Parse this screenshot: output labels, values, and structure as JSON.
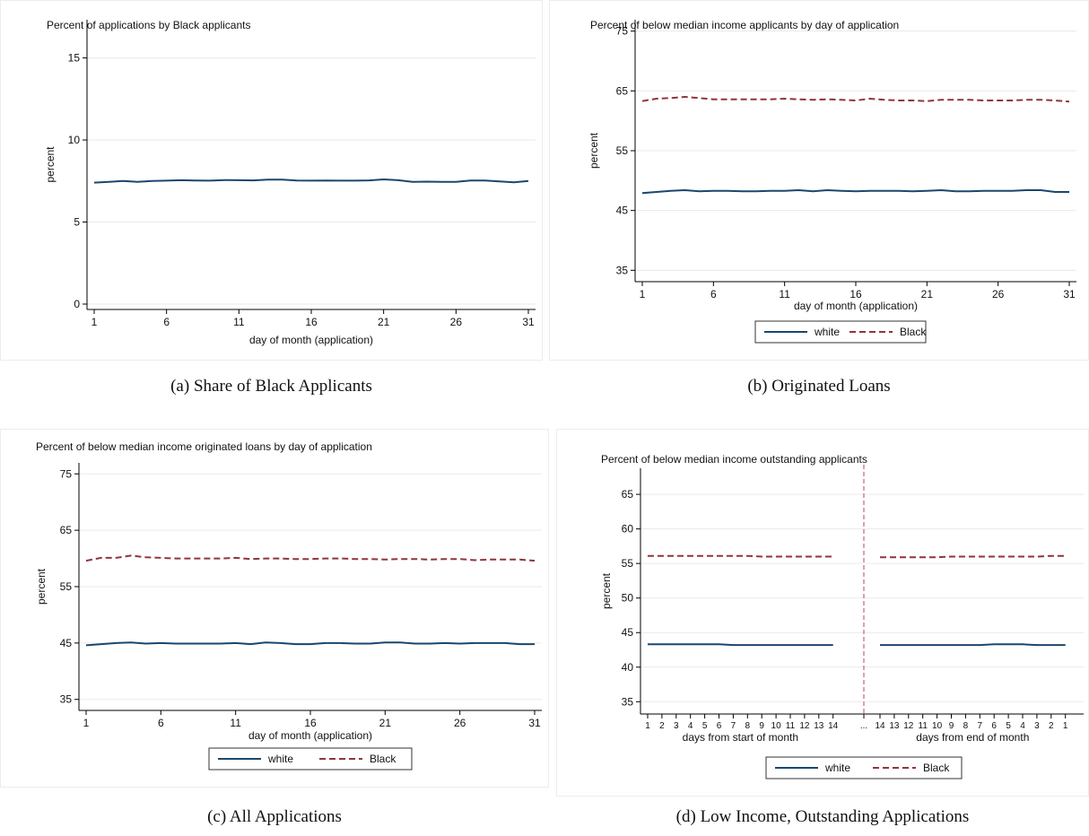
{
  "colors": {
    "white_series": "#1a476f",
    "black_series": "#90353b",
    "grid": "#eaeaea",
    "axis": "#000000"
  },
  "captions": {
    "a": "(a)  Share of Black Applicants",
    "b": "(b)  Originated Loans",
    "c": "(c)  All Applications",
    "d": "(d)  Low Income, Outstanding Applications"
  },
  "chart_data": [
    {
      "id": "a",
      "type": "line",
      "title": "Percent of applications by Black applicants",
      "xlabel": "day of month (application)",
      "ylabel": "percent",
      "xlim": [
        1,
        31
      ],
      "ylim": [
        0,
        17
      ],
      "xticks": [
        1,
        6,
        11,
        16,
        21,
        26,
        31
      ],
      "yticks": [
        0,
        5,
        10,
        15
      ],
      "grid": true,
      "legend": "none",
      "x": [
        1,
        2,
        3,
        4,
        5,
        6,
        7,
        8,
        9,
        10,
        11,
        12,
        13,
        14,
        15,
        16,
        17,
        18,
        19,
        20,
        21,
        22,
        23,
        24,
        25,
        26,
        27,
        28,
        29,
        30,
        31
      ],
      "series": [
        {
          "key": "black_share",
          "color": "#1a476f",
          "dash": "",
          "values": [
            7.4,
            7.45,
            7.5,
            7.45,
            7.5,
            7.52,
            7.55,
            7.53,
            7.52,
            7.56,
            7.55,
            7.54,
            7.58,
            7.58,
            7.53,
            7.52,
            7.53,
            7.52,
            7.52,
            7.54,
            7.6,
            7.55,
            7.45,
            7.46,
            7.45,
            7.45,
            7.53,
            7.53,
            7.48,
            7.42,
            7.5
          ]
        }
      ]
    },
    {
      "id": "b",
      "type": "line",
      "title": "Percent of below median income applicants by day of application",
      "xlabel": "day of month (application)",
      "ylabel": "percent",
      "xlim": [
        1,
        31
      ],
      "ylim": [
        34,
        76
      ],
      "xticks": [
        1,
        6,
        11,
        16,
        21,
        26,
        31
      ],
      "yticks": [
        35,
        45,
        55,
        65,
        75
      ],
      "grid": true,
      "legend": "bottom",
      "x": [
        1,
        2,
        3,
        4,
        5,
        6,
        7,
        8,
        9,
        10,
        11,
        12,
        13,
        14,
        15,
        16,
        17,
        18,
        19,
        20,
        21,
        22,
        23,
        24,
        25,
        26,
        27,
        28,
        29,
        30,
        31
      ],
      "series": [
        {
          "name": "white",
          "color": "#1a476f",
          "dash": "",
          "values": [
            47.9,
            48.1,
            48.3,
            48.4,
            48.2,
            48.3,
            48.3,
            48.2,
            48.2,
            48.3,
            48.3,
            48.4,
            48.2,
            48.4,
            48.3,
            48.2,
            48.3,
            48.3,
            48.3,
            48.2,
            48.3,
            48.4,
            48.2,
            48.2,
            48.3,
            48.3,
            48.3,
            48.4,
            48.4,
            48.1,
            48.1
          ]
        },
        {
          "name": "Black",
          "color": "#90353b",
          "dash": "7 4",
          "values": [
            63.3,
            63.7,
            63.8,
            64.0,
            63.8,
            63.6,
            63.6,
            63.6,
            63.6,
            63.6,
            63.7,
            63.6,
            63.5,
            63.6,
            63.5,
            63.4,
            63.7,
            63.5,
            63.4,
            63.4,
            63.3,
            63.5,
            63.5,
            63.5,
            63.4,
            63.4,
            63.4,
            63.5,
            63.5,
            63.4,
            63.2
          ]
        }
      ]
    },
    {
      "id": "c",
      "type": "line",
      "title": "Percent of below median income originated loans by day of application",
      "xlabel": "day of month (application)",
      "ylabel": "percent",
      "xlim": [
        1,
        31
      ],
      "ylim": [
        34,
        76
      ],
      "xticks": [
        1,
        6,
        11,
        16,
        21,
        26,
        31
      ],
      "yticks": [
        35,
        45,
        55,
        65,
        75
      ],
      "grid": true,
      "legend": "bottom",
      "x": [
        1,
        2,
        3,
        4,
        5,
        6,
        7,
        8,
        9,
        10,
        11,
        12,
        13,
        14,
        15,
        16,
        17,
        18,
        19,
        20,
        21,
        22,
        23,
        24,
        25,
        26,
        27,
        28,
        29,
        30,
        31
      ],
      "series": [
        {
          "name": "white",
          "color": "#1a476f",
          "dash": "",
          "values": [
            44.6,
            44.8,
            45.0,
            45.1,
            44.9,
            45.0,
            44.9,
            44.9,
            44.9,
            44.9,
            45.0,
            44.8,
            45.1,
            45.0,
            44.8,
            44.8,
            45.0,
            45.0,
            44.9,
            44.9,
            45.1,
            45.1,
            44.9,
            44.9,
            45.0,
            44.9,
            45.0,
            45.0,
            45.0,
            44.8,
            44.8
          ]
        },
        {
          "name": "Black",
          "color": "#90353b",
          "dash": "7 4",
          "values": [
            59.6,
            60.1,
            60.1,
            60.5,
            60.2,
            60.1,
            60.0,
            60.0,
            60.0,
            60.0,
            60.1,
            59.9,
            60.0,
            60.0,
            59.9,
            59.9,
            60.0,
            60.0,
            59.9,
            59.9,
            59.8,
            59.9,
            59.9,
            59.8,
            59.9,
            59.9,
            59.7,
            59.8,
            59.8,
            59.8,
            59.6
          ]
        }
      ]
    },
    {
      "id": "d",
      "type": "line",
      "title": "Percent of below median income outstanding applicants",
      "xlabel_left": "days from start of month",
      "xlabel_right": "days from end of month",
      "ylabel": "percent",
      "ylim": [
        34,
        68
      ],
      "yticks": [
        35,
        40,
        45,
        50,
        55,
        60,
        65
      ],
      "grid": true,
      "legend": "bottom",
      "divider_label": "...",
      "xtick_labels_left": [
        "1",
        "2",
        "3",
        "4",
        "5",
        "6",
        "7",
        "8",
        "9",
        "10",
        "11",
        "12",
        "13",
        "14"
      ],
      "xtick_labels_right": [
        "14",
        "13",
        "12",
        "11",
        "10",
        "9",
        "8",
        "7",
        "6",
        "5",
        "4",
        "3",
        "2",
        "1"
      ],
      "series": [
        {
          "name": "white",
          "color": "#1a476f",
          "dash": "",
          "left_values": [
            43.3,
            43.3,
            43.3,
            43.3,
            43.3,
            43.3,
            43.2,
            43.2,
            43.2,
            43.2,
            43.2,
            43.2,
            43.2,
            43.2
          ],
          "right_values": [
            43.2,
            43.2,
            43.2,
            43.2,
            43.2,
            43.2,
            43.2,
            43.2,
            43.3,
            43.3,
            43.3,
            43.2,
            43.2,
            43.2
          ]
        },
        {
          "name": "Black",
          "color": "#90353b",
          "dash": "7 4",
          "left_values": [
            56.1,
            56.1,
            56.1,
            56.1,
            56.1,
            56.1,
            56.1,
            56.1,
            56.0,
            56.0,
            56.0,
            56.0,
            56.0,
            56.0
          ],
          "right_values": [
            55.9,
            55.9,
            55.9,
            55.9,
            55.9,
            56.0,
            56.0,
            56.0,
            56.0,
            56.0,
            56.0,
            56.0,
            56.1,
            56.1
          ]
        }
      ]
    }
  ]
}
